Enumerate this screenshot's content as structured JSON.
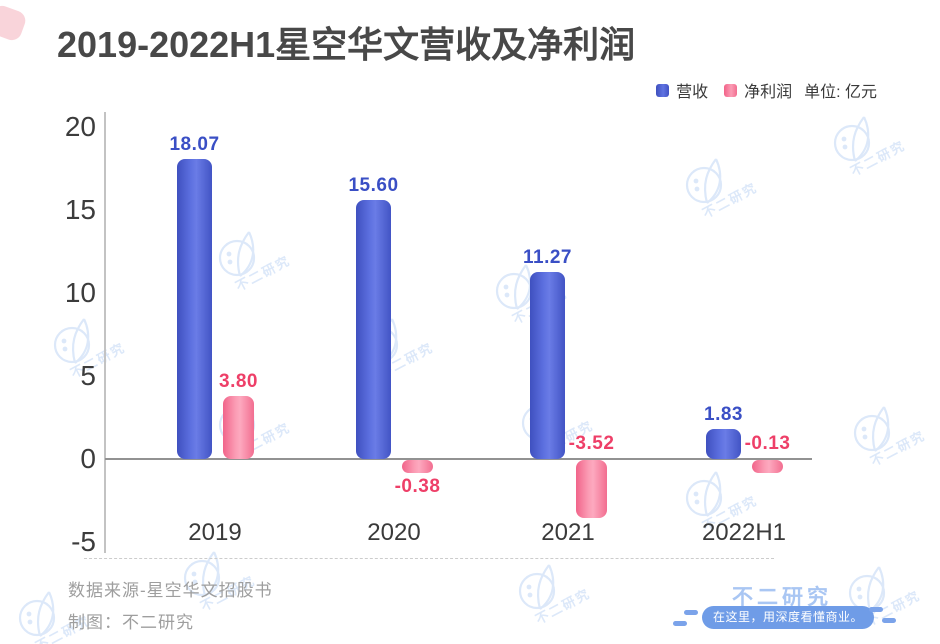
{
  "chart_data": {
    "type": "bar",
    "title": "2019-2022H1星空华文营收及净利润",
    "unit_note": "单位: 亿元",
    "categories": [
      "2019",
      "2020",
      "2021",
      "2022H1"
    ],
    "series": [
      {
        "name": "营收",
        "values": [
          18.07,
          15.6,
          11.27,
          1.83
        ],
        "color": "#4e60d6",
        "label_color": "#3a4fc5"
      },
      {
        "name": "净利润",
        "values": [
          3.8,
          -0.38,
          -3.52,
          -0.13
        ],
        "color": "#f87e9e",
        "label_color": "#ee3f68"
      }
    ],
    "y_ticks": [
      20,
      15,
      10,
      5,
      0,
      -5
    ],
    "ylim": [
      -5,
      20
    ],
    "grid": false,
    "legend_position": "top-right",
    "label_decimals": 2,
    "label_placement": {
      "净利润": [
        "above-bar",
        "below-bar",
        "above-zero",
        "above-zero"
      ]
    }
  },
  "footer": {
    "source": "数据来源-星空华文招股书",
    "credit": "制图：不二研究",
    "brand": "不二研究",
    "tagline": "在这里，用深度看懂商业。"
  },
  "watermark": {
    "text": "不二研究"
  }
}
